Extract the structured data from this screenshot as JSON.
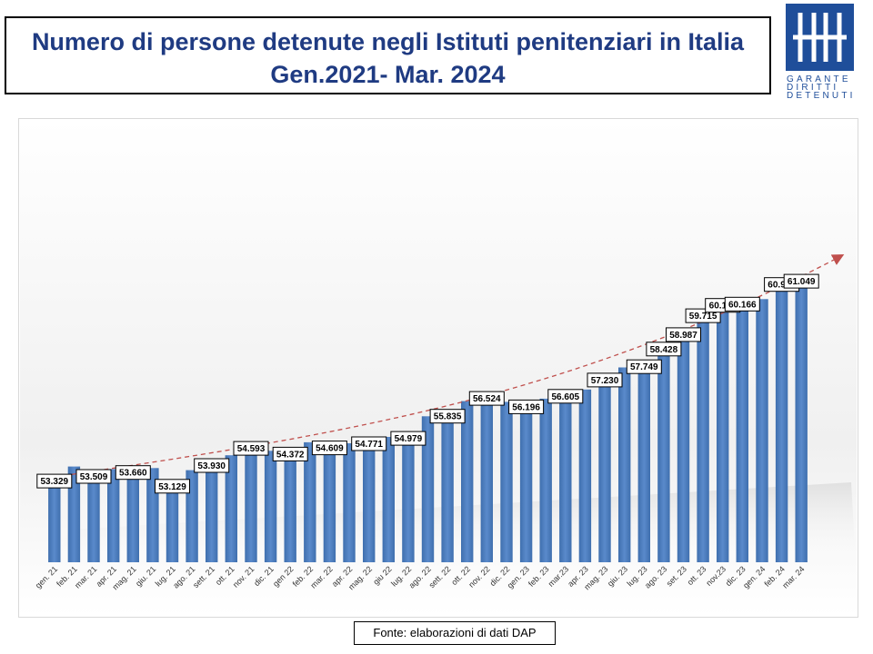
{
  "title": {
    "line1": "Numero di persone detenute negli Istituti penitenziari in Italia",
    "line2": "Gen.2021- Mar. 2024"
  },
  "logo": {
    "icon": "garante-logo-icon",
    "text_lines": [
      "GARANTE",
      "DIRITTI",
      "DETENUTI"
    ],
    "color": "#1f4e9a"
  },
  "source": "Fonte: elaborazioni di dati DAP",
  "colors": {
    "bar": "#4f81bd",
    "bar_dark": "#3a6aa5",
    "trend": "#c0504d",
    "title": "#1f3b82"
  },
  "chart_data": {
    "type": "bar",
    "title": "",
    "xlabel": "",
    "ylabel": "",
    "ylim": [
      50000,
      62000
    ],
    "grid": false,
    "trendline": true,
    "categories": [
      "gen. 21",
      "feb. 21",
      "mar. 21",
      "apr. 21",
      "mag. 21",
      "giu. 21",
      "lug. 21",
      "ago. 21",
      "sett. 21",
      "ott. 21",
      "nov. 21",
      "dic. 21",
      "gen 22",
      "feb. 22",
      "mar. 22",
      "apr. 22",
      "mag. 22",
      "giu 22",
      "lug. 22",
      "ago. 22",
      "sett. 22",
      "ott. 22",
      "nov. 22",
      "dic. 22",
      "gen. 23",
      "feb. 23",
      "mar.23",
      "apr. 23",
      "mag. 23",
      "giu. 23",
      "lug. 23",
      "ago. 23",
      "set. 23",
      "ott. 23",
      "nov.23",
      "dic. 23",
      "gen. 24",
      "feb. 24",
      "mar. 24"
    ],
    "values": [
      53329,
      53697,
      53509,
      53600,
      53660,
      53637,
      53129,
      53557,
      53930,
      54134,
      54593,
      54307,
      54372,
      54635,
      54609,
      54595,
      54771,
      54841,
      54979,
      55637,
      55835,
      56225,
      56524,
      56196,
      56196,
      56319,
      56605,
      56674,
      57230,
      57525,
      57749,
      58428,
      58987,
      59715,
      60116,
      60166,
      60166,
      60924,
      61049
    ],
    "labels": [
      {
        "index": 0,
        "text": "53.329"
      },
      {
        "index": 2,
        "text": "53.509"
      },
      {
        "index": 4,
        "text": "53.660"
      },
      {
        "index": 6,
        "text": "53.129"
      },
      {
        "index": 8,
        "text": "53.930"
      },
      {
        "index": 10,
        "text": "54.593"
      },
      {
        "index": 12,
        "text": "54.372"
      },
      {
        "index": 14,
        "text": "54.609"
      },
      {
        "index": 16,
        "text": "54.771"
      },
      {
        "index": 18,
        "text": "54.979"
      },
      {
        "index": 20,
        "text": "55.835"
      },
      {
        "index": 22,
        "text": "56.524"
      },
      {
        "index": 24,
        "text": "56.196"
      },
      {
        "index": 26,
        "text": "56.605"
      },
      {
        "index": 28,
        "text": "57.230"
      },
      {
        "index": 30,
        "text": "57.749"
      },
      {
        "index": 31,
        "text": "58.428"
      },
      {
        "index": 32,
        "text": "58.987"
      },
      {
        "index": 33,
        "text": "59.715"
      },
      {
        "index": 34,
        "text": "60.116"
      },
      {
        "index": 35,
        "text": "60.166"
      },
      {
        "index": 37,
        "text": "60.924"
      },
      {
        "index": 38,
        "text": "61.049"
      }
    ]
  }
}
